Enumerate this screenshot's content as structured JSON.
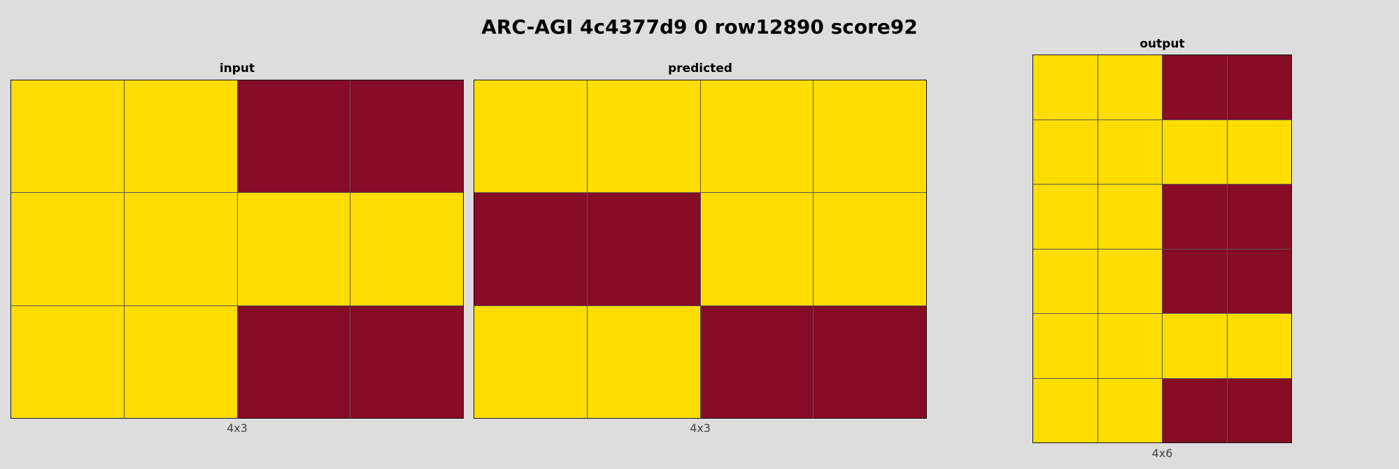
{
  "title": "ARC-AGI 4c4377d9 0 row12890 score92",
  "colors": {
    "Y": "#FFDD00",
    "M": "#870C25",
    "background": "#DDDDDD",
    "gridline": "#555555"
  },
  "panels": [
    {
      "title": "input",
      "caption": "4x3",
      "rows": [
        [
          "Y",
          "Y",
          "M",
          "M"
        ],
        [
          "Y",
          "Y",
          "Y",
          "Y"
        ],
        [
          "Y",
          "Y",
          "M",
          "M"
        ]
      ]
    },
    {
      "title": "predicted",
      "caption": "4x3",
      "rows": [
        [
          "Y",
          "Y",
          "Y",
          "Y"
        ],
        [
          "M",
          "M",
          "Y",
          "Y"
        ],
        [
          "Y",
          "Y",
          "M",
          "M"
        ]
      ]
    },
    {
      "title": "output",
      "caption": "4x6",
      "rows": [
        [
          "Y",
          "Y",
          "M",
          "M"
        ],
        [
          "Y",
          "Y",
          "Y",
          "Y"
        ],
        [
          "Y",
          "Y",
          "M",
          "M"
        ],
        [
          "Y",
          "Y",
          "M",
          "M"
        ],
        [
          "Y",
          "Y",
          "Y",
          "Y"
        ],
        [
          "Y",
          "Y",
          "M",
          "M"
        ]
      ]
    }
  ]
}
